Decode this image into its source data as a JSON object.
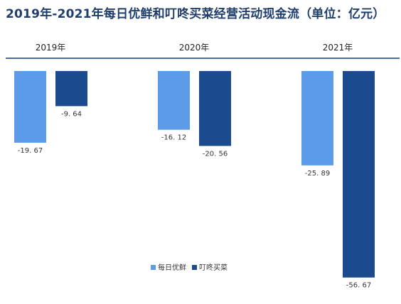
{
  "chart_data": {
    "type": "bar",
    "title": "2019年-2021年每日优鲜和叮咚买菜经营活动现金流（单位：亿元）",
    "categories": [
      "2019年",
      "2020年",
      "2021年"
    ],
    "series": [
      {
        "name": "每日优鲜",
        "values": [
          -19.67,
          -16.12,
          -25.89
        ],
        "color": "#5b9be8"
      },
      {
        "name": "叮咚买菜",
        "values": [
          -9.64,
          -20.56,
          -56.67
        ],
        "color": "#1b4a8f"
      }
    ],
    "value_labels": [
      [
        "-19. 67",
        "-16. 12",
        "-25. 89"
      ],
      [
        "-9. 64",
        "-20. 56",
        "-56. 67"
      ]
    ],
    "ylim": [
      -60,
      0
    ],
    "axis_color": "#4a6f9e",
    "legend_position": "bottom-center",
    "grid": false
  }
}
